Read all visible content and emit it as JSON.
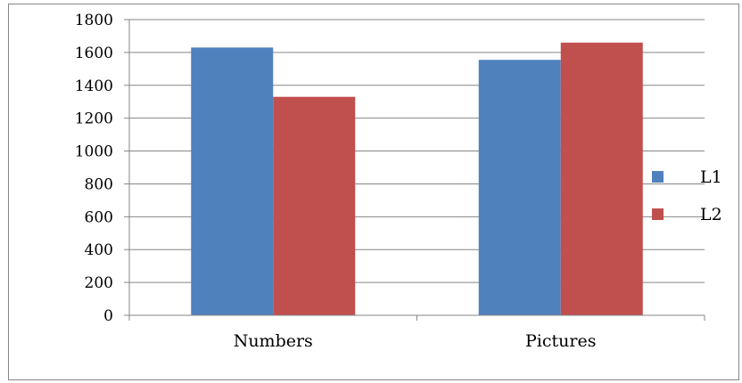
{
  "chart_data": {
    "type": "bar",
    "title": "",
    "xlabel": "",
    "ylabel": "",
    "categories": [
      "Numbers",
      "Pictures"
    ],
    "series": [
      {
        "name": "L1",
        "color": "#4F81BD",
        "values": [
          1630,
          1555
        ]
      },
      {
        "name": "L2",
        "color": "#C0504D",
        "values": [
          1330,
          1660
        ]
      }
    ],
    "ylim": [
      0,
      1800
    ],
    "yticks": [
      0,
      200,
      400,
      600,
      800,
      1000,
      1200,
      1400,
      1600,
      1800
    ],
    "grid": true,
    "legend_position": "right"
  }
}
